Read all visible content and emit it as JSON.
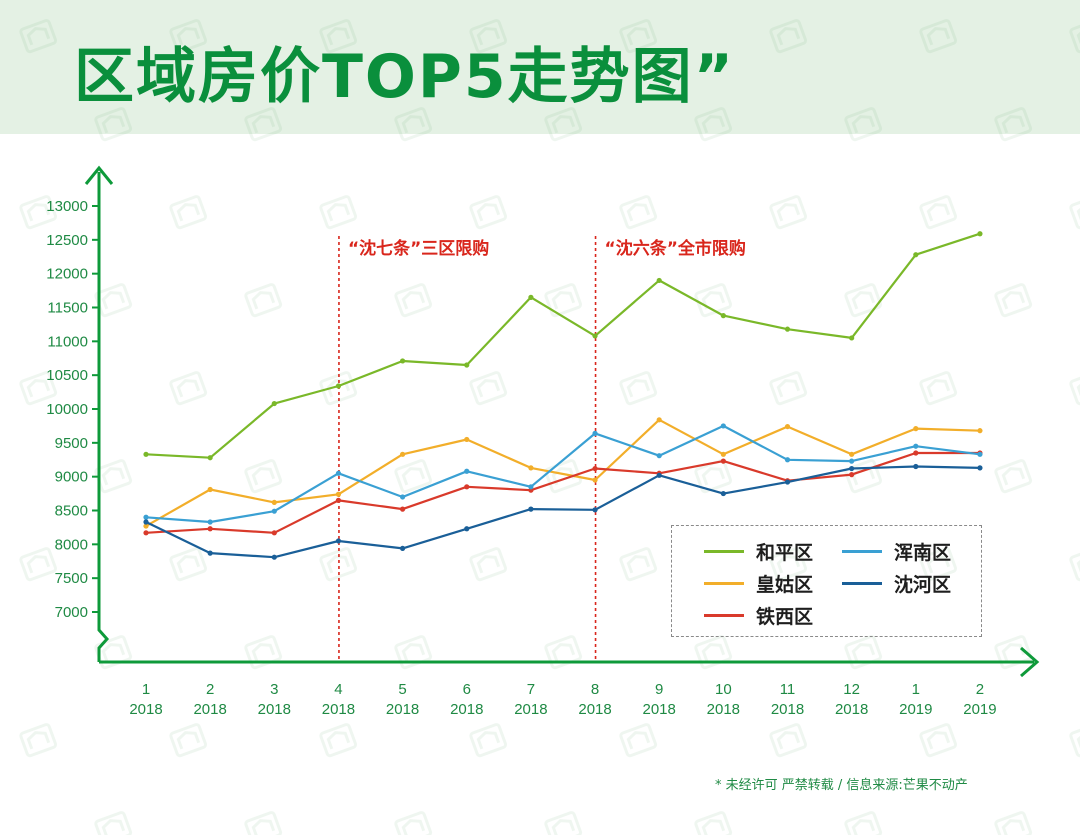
{
  "title": "区域房价TOP5走势图”",
  "footer": "* 未经许可 严禁转载 / 信息来源:芒果不动产",
  "colors": {
    "axis": "#0e9a3a",
    "header_bg": "#e4f1e4",
    "annotation": "#d9261c"
  },
  "chart_data": {
    "type": "line",
    "title": "区域房价TOP5走势图”",
    "xlabel": "",
    "ylabel": "",
    "categories": [
      {
        "month": "1",
        "year": "2018"
      },
      {
        "month": "2",
        "year": "2018"
      },
      {
        "month": "3",
        "year": "2018"
      },
      {
        "month": "4",
        "year": "2018"
      },
      {
        "month": "5",
        "year": "2018"
      },
      {
        "month": "6",
        "year": "2018"
      },
      {
        "month": "7",
        "year": "2018"
      },
      {
        "month": "8",
        "year": "2018"
      },
      {
        "month": "9",
        "year": "2018"
      },
      {
        "month": "10",
        "year": "2018"
      },
      {
        "month": "11",
        "year": "2018"
      },
      {
        "month": "12",
        "year": "2018"
      },
      {
        "month": "1",
        "year": "2019"
      },
      {
        "month": "2",
        "year": "2019"
      }
    ],
    "yticks": [
      7000,
      7500,
      8000,
      8500,
      9000,
      9500,
      10000,
      10500,
      11000,
      11500,
      12000,
      12500,
      13000
    ],
    "ylim": [
      7000,
      13000
    ],
    "y_axis_broken": true,
    "grid": false,
    "legend_position": "bottom-right",
    "series": [
      {
        "name": "和平区",
        "color": "#7ab829",
        "values": [
          9330,
          9280,
          10080,
          10340,
          10710,
          10650,
          11650,
          11080,
          11900,
          11380,
          11180,
          11050,
          12280,
          12590
        ]
      },
      {
        "name": "皇姑区",
        "color": "#f2ae2a",
        "values": [
          8270,
          8810,
          8620,
          8740,
          9330,
          9550,
          9130,
          8950,
          9840,
          9330,
          9740,
          9330,
          9710,
          9680
        ]
      },
      {
        "name": "铁西区",
        "color": "#d93a2b",
        "values": [
          8170,
          8230,
          8170,
          8650,
          8520,
          8850,
          8800,
          9120,
          9050,
          9230,
          8940,
          9030,
          9350,
          9350
        ]
      },
      {
        "name": "浑南区",
        "color": "#3aa0d3",
        "values": [
          8400,
          8330,
          8490,
          9050,
          8700,
          9080,
          8850,
          9640,
          9310,
          9750,
          9250,
          9230,
          9450,
          9330
        ]
      },
      {
        "name": "沈河区",
        "color": "#1a5f98",
        "values": [
          8330,
          7870,
          7810,
          8050,
          7940,
          8230,
          8520,
          8510,
          9020,
          8750,
          8920,
          9120,
          9150,
          9130
        ]
      }
    ],
    "annotations": [
      {
        "at_index": 3,
        "text": "“沈七条”三区限购"
      },
      {
        "at_index": 7,
        "text": "“沈六条”全市限购"
      }
    ]
  }
}
